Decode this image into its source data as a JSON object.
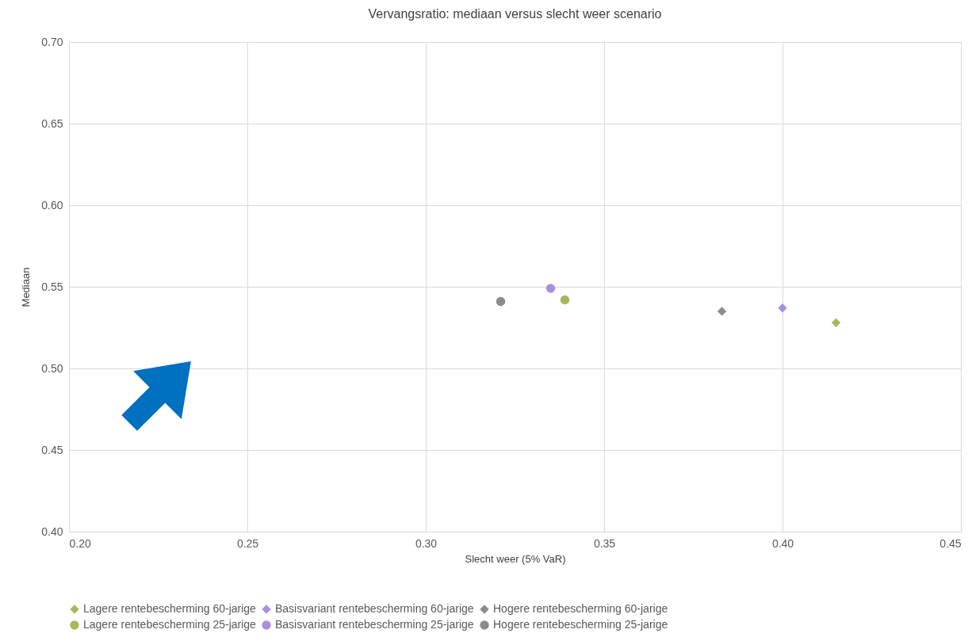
{
  "chart_data": {
    "type": "scatter",
    "title": "Vervangsratio: mediaan versus slecht weer scenario",
    "xlabel": "Slecht weer (5% VaR)",
    "ylabel": "Mediaan",
    "xlim": [
      0.2,
      0.45
    ],
    "xticks": [
      {
        "value": 0.2,
        "label": "0.20"
      },
      {
        "value": 0.25,
        "label": "0.25"
      },
      {
        "value": 0.3,
        "label": "0.30"
      },
      {
        "value": 0.35,
        "label": "0.35"
      },
      {
        "value": 0.4,
        "label": "0.40"
      },
      {
        "value": 0.45,
        "label": "0.45"
      }
    ],
    "ylim": [
      0.4,
      0.7
    ],
    "yticks": [
      {
        "value": 0.4,
        "label": "0.40"
      },
      {
        "value": 0.45,
        "label": "0.45"
      },
      {
        "value": 0.5,
        "label": "0.50"
      },
      {
        "value": 0.55,
        "label": "0.55"
      },
      {
        "value": 0.6,
        "label": "0.60"
      },
      {
        "value": 0.65,
        "label": "0.65"
      },
      {
        "value": 0.7,
        "label": "0.70"
      }
    ],
    "grid": true,
    "legend": "bottom",
    "series": [
      {
        "name": "Lagere rentebescherming 60-jarige",
        "color": "#a9b75a",
        "marker": "diamond",
        "x": [
          0.415
        ],
        "values": [
          0.528
        ]
      },
      {
        "name": "Basisvariant rentebescherming 60-jarige",
        "color": "#a98ee0",
        "marker": "diamond",
        "x": [
          0.4
        ],
        "values": [
          0.537
        ]
      },
      {
        "name": "Hogere rentebescherming 60-jarige",
        "color": "#8c8c8c",
        "marker": "diamond",
        "x": [
          0.383
        ],
        "values": [
          0.535
        ]
      },
      {
        "name": "Lagere rentebescherming 25-jarige",
        "color": "#a9b75a",
        "marker": "circle",
        "x": [
          0.339
        ],
        "values": [
          0.542
        ]
      },
      {
        "name": "Basisvariant rentebescherming 25-jarige",
        "color": "#a98ee0",
        "marker": "circle",
        "x": [
          0.335
        ],
        "values": [
          0.549
        ]
      },
      {
        "name": "Hogere rentebescherming 25-jarige",
        "color": "#8c8c8c",
        "marker": "circle",
        "x": [
          0.321
        ],
        "values": [
          0.541
        ]
      }
    ]
  }
}
